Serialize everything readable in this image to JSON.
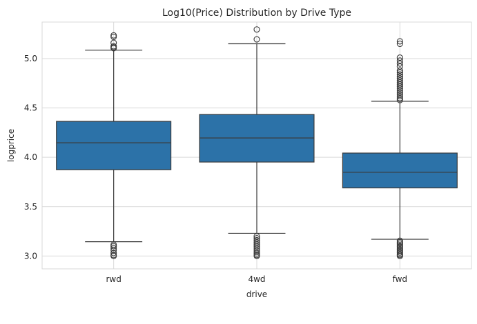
{
  "chart_data": {
    "type": "box",
    "title": "Log10(Price) Distribution by Drive Type",
    "xlabel": "drive",
    "ylabel": "logprice",
    "categories": [
      "rwd",
      "4wd",
      "fwd"
    ],
    "ylim": [
      2.87,
      5.37
    ],
    "yticks": [
      3.0,
      3.5,
      4.0,
      4.5,
      5.0
    ],
    "ytick_labels": [
      "3.0",
      "3.5",
      "4.0",
      "4.5",
      "5.0"
    ],
    "grid": true,
    "box_color": "#2c72a8",
    "line_color": "#3a3a3a",
    "boxes": [
      {
        "category": "rwd",
        "whisker_low": 3.145,
        "q1": 3.874,
        "median": 4.147,
        "q3": 4.364,
        "whisker_high": 5.085,
        "outliers_high": [
          5.105,
          5.115,
          5.125,
          5.16,
          5.22,
          5.235
        ],
        "outliers_low": [
          3.0,
          3.01,
          3.03,
          3.06,
          3.08,
          3.1,
          3.115
        ]
      },
      {
        "category": "4wd",
        "whisker_low": 3.23,
        "q1": 3.952,
        "median": 4.196,
        "q3": 4.434,
        "whisker_high": 5.15,
        "outliers_high": [
          5.195,
          5.295
        ],
        "outliers_low": [
          3.0,
          3.01,
          3.025,
          3.04,
          3.06,
          3.08,
          3.1,
          3.12,
          3.14,
          3.16,
          3.18,
          3.2
        ]
      },
      {
        "category": "fwd",
        "whisker_low": 3.17,
        "q1": 3.69,
        "median": 3.848,
        "q3": 4.043,
        "whisker_high": 4.568,
        "outliers_high": [
          4.58,
          4.6,
          4.62,
          4.64,
          4.66,
          4.68,
          4.7,
          4.72,
          4.74,
          4.76,
          4.78,
          4.8,
          4.82,
          4.84,
          4.86,
          4.88,
          4.92,
          4.95,
          4.98,
          5.01,
          5.15,
          5.175
        ],
        "outliers_low": [
          3.0,
          3.01,
          3.02,
          3.035,
          3.05,
          3.065,
          3.08,
          3.095,
          3.11,
          3.125,
          3.14,
          3.155
        ]
      }
    ]
  }
}
